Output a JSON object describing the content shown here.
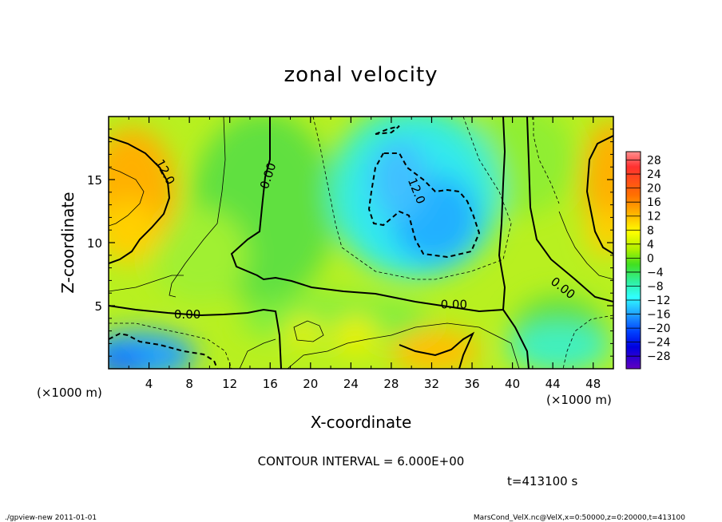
{
  "chart_data": {
    "type": "heatmap",
    "title": "zonal velocity",
    "xlabel": "X-coordinate",
    "ylabel": "Z-coordinate",
    "x_unit_left": "(×1000 m)",
    "x_unit_right": "(×1000 m)",
    "xlim": [
      0,
      50
    ],
    "ylim": [
      0,
      20
    ],
    "x_ticks": [
      4,
      8,
      12,
      16,
      20,
      24,
      28,
      32,
      36,
      40,
      44,
      48
    ],
    "y_ticks": [
      5,
      10,
      15
    ],
    "colorbar_levels": [
      28,
      24,
      20,
      16,
      12,
      8,
      4,
      0,
      -4,
      -8,
      -12,
      -16,
      -20,
      -24,
      -28
    ],
    "contour_labels": [
      {
        "text": "12.0",
        "x": 5.6,
        "z": 15.6,
        "angle": 62
      },
      {
        "text": "0.00",
        "x": 15.8,
        "z": 15.3,
        "angle": -72
      },
      {
        "text": "12.0",
        "x": 30.5,
        "z": 14.1,
        "angle": 68
      },
      {
        "text": "0.00",
        "x": 7.8,
        "z": 4.3,
        "angle": 0
      },
      {
        "text": "0.00",
        "x": 34.2,
        "z": 5.1,
        "angle": 0
      },
      {
        "text": "0.00",
        "x": 45.0,
        "z": 6.4,
        "angle": 38
      }
    ],
    "contour_interval": "CONTOUR INTERVAL = 6.000E+00",
    "time": "t=413100 s"
  },
  "footer": {
    "program": "./gpview-new  2011-01-01",
    "source": "MarsCond_VelX.nc@VelX,x=0:50000,z=0:20000,t=413100"
  },
  "colors": {
    "scale": [
      "#e020e0",
      "#ff0000",
      "#ff8000",
      "#ffd000",
      "#ffff00",
      "#a0ff00",
      "#00e000",
      "#00ffa0",
      "#00ffff",
      "#00a0ff",
      "#0040ff",
      "#0000ff",
      "#6000c0",
      "#400080"
    ]
  }
}
